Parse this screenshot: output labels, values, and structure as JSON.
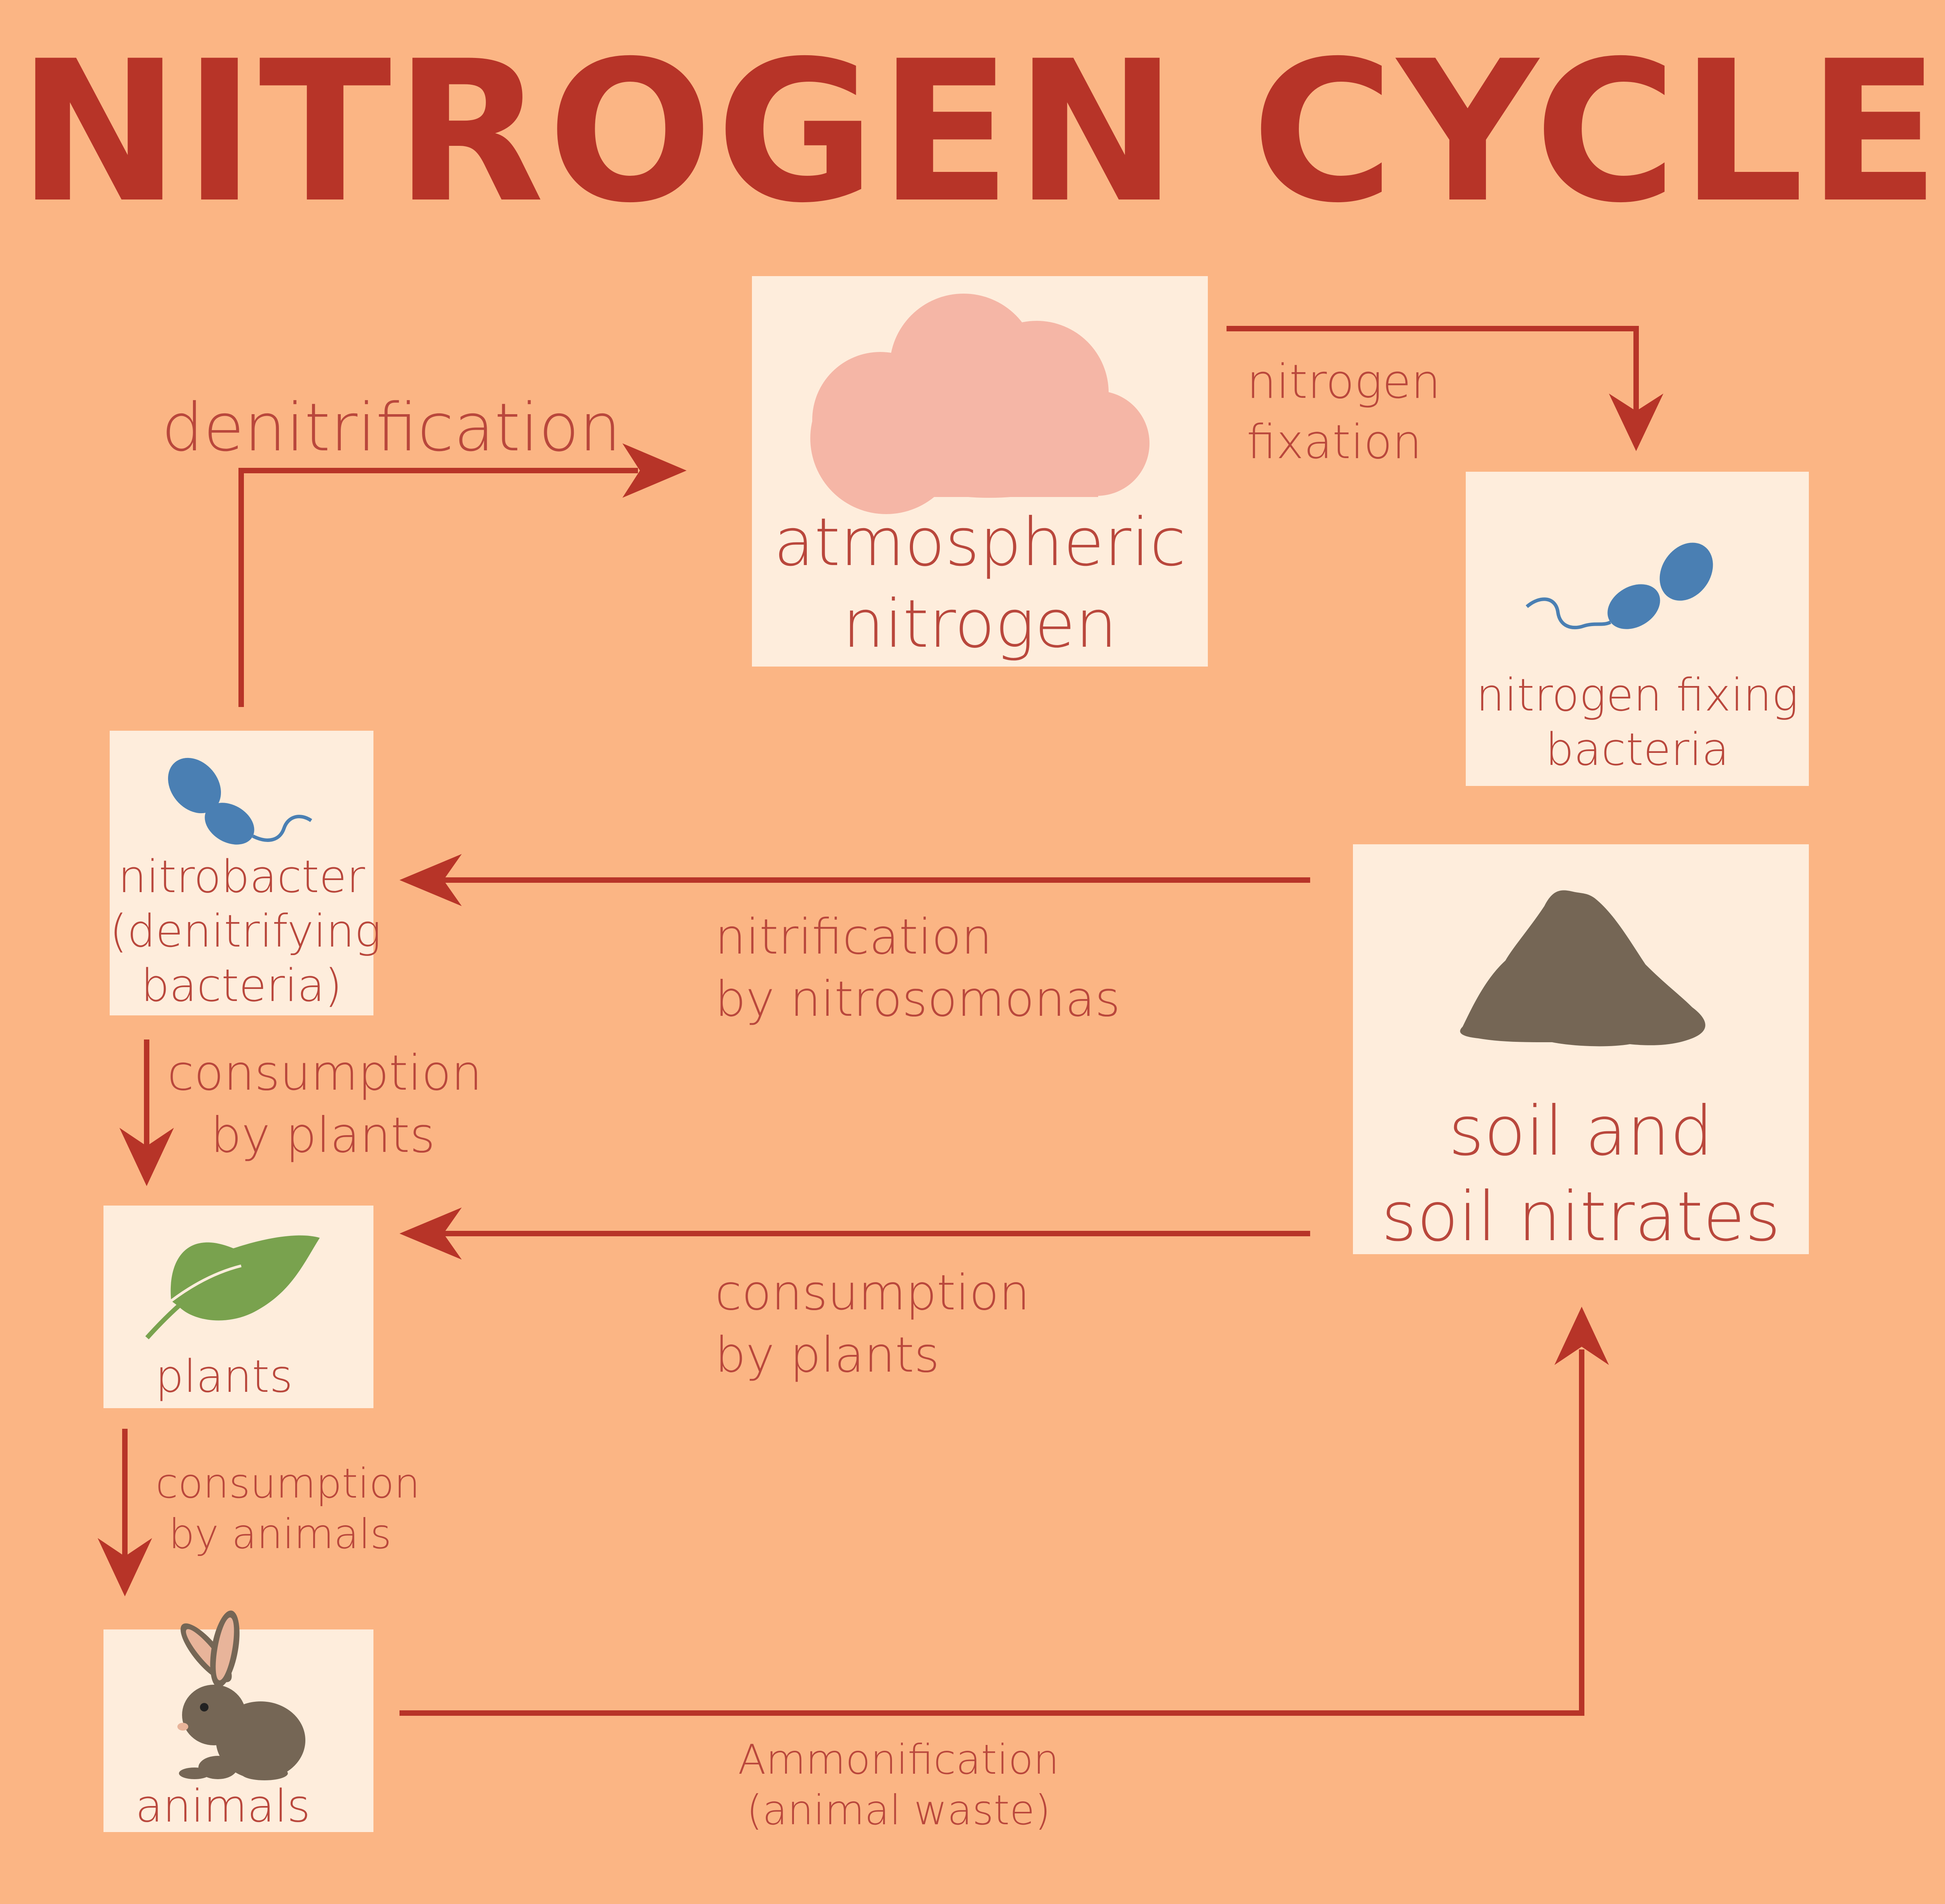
{
  "title": "NITROGEN CYCLE",
  "colors": {
    "background": "#fbb584",
    "box": "#feeddc",
    "accent": "#b73428",
    "label": "#b9473c",
    "cloud": "#f5b6a6",
    "bacteria": "#4a7fb3",
    "soil": "#756655",
    "leaf": "#79a24e",
    "rabbit": "#756655"
  },
  "nodes": {
    "atmospheric": {
      "line1": "atmospheric",
      "line2": "nitrogen",
      "icon": "cloud-icon"
    },
    "fixing_bacteria": {
      "line1": "nitrogen fixing",
      "line2": "bacteria",
      "icon": "bacteria-icon"
    },
    "soil": {
      "line1": "soil and",
      "line2": "soil nitrates",
      "icon": "soil-pile-icon"
    },
    "nitrobacter": {
      "line1": "nitrobacter",
      "line2": "(denitrifying",
      "line3": "bacteria)",
      "icon": "bacteria-icon"
    },
    "plants": {
      "label": "plants",
      "icon": "leaf-icon"
    },
    "animals": {
      "label": "animals",
      "icon": "rabbit-icon"
    }
  },
  "processes": {
    "denitrification": "denitrification",
    "fixation": {
      "line1": "nitrogen",
      "line2": "fixation"
    },
    "nitrification": {
      "line1": "nitrification",
      "line2": "by nitrosomonas"
    },
    "consumption_plants_left": {
      "line1": "consumption",
      "line2": "by plants"
    },
    "consumption_plants_mid": {
      "line1": "consumption",
      "line2": "by plants"
    },
    "consumption_animals": {
      "line1": "consumption",
      "line2": "by animals"
    },
    "ammonification": {
      "line1": "Ammonification",
      "line2": "(animal waste)"
    }
  }
}
